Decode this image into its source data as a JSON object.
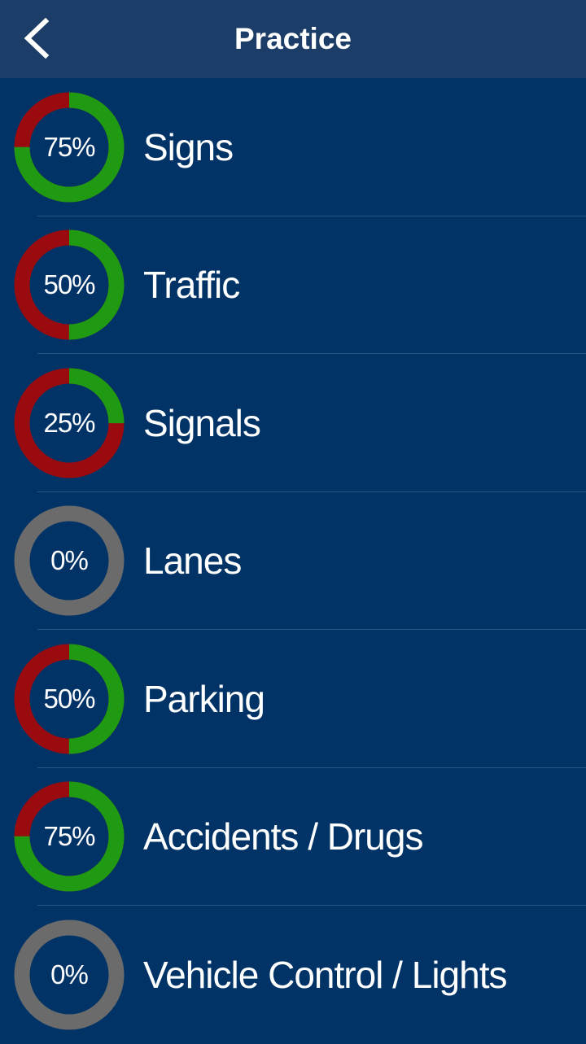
{
  "header": {
    "title": "Practice",
    "back_icon": "chevron-left-icon"
  },
  "colors": {
    "correct": "#1f9a12",
    "incorrect": "#9a0b10",
    "empty": "#6b6b6b",
    "background": "#023366",
    "header": "#1b3d67"
  },
  "categories": [
    {
      "label": "Signs",
      "percent_text": "75%",
      "percent": 75
    },
    {
      "label": "Traffic",
      "percent_text": "50%",
      "percent": 50
    },
    {
      "label": "Signals",
      "percent_text": "25%",
      "percent": 25
    },
    {
      "label": "Lanes",
      "percent_text": "0%",
      "percent": 0
    },
    {
      "label": "Parking",
      "percent_text": "50%",
      "percent": 50
    },
    {
      "label": "Accidents / Drugs",
      "percent_text": "75%",
      "percent": 75
    },
    {
      "label": "Vehicle Control / Lights",
      "percent_text": "0%",
      "percent": 0
    }
  ]
}
